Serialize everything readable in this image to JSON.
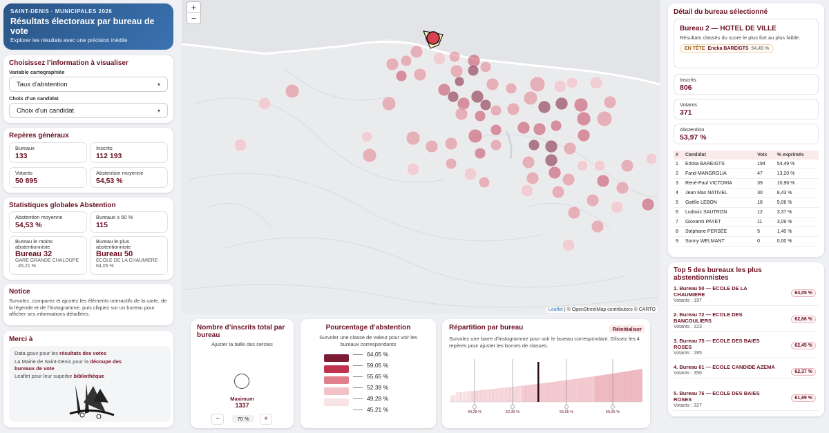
{
  "header": {
    "kicker": "SAINT-DENIS · MUNICIPALES 2026",
    "title": "Résultats électoraux par bureau de vote",
    "subtitle": "Explorer les résultats avec une précision inédite"
  },
  "choose": {
    "title": "Choisissez l’information à visualiser",
    "var_label": "Variable cartographiée",
    "var_value": "Taux d'abstention",
    "cand_label": "Choix d’un candidat",
    "cand_value": "Choix d'un candidat"
  },
  "reperes": {
    "title": "Repères généraux",
    "items": [
      {
        "k": "Bureaux",
        "v": "133"
      },
      {
        "k": "Inscrits",
        "v": "112 193"
      },
      {
        "k": "Votants",
        "v": "50 895"
      },
      {
        "k": "Abstention moyenne",
        "v": "54,53 %"
      }
    ]
  },
  "stats": {
    "title": "Statistiques globales Abstention",
    "abst_k": "Abstention moyenne",
    "abst_v": "54,53 %",
    "b50_k": "Bureaux ≥ 50 %",
    "b50_v": "115",
    "least_k": "Bureau le moins abstentionniste",
    "least_v": "Bureau 32",
    "least_s": "GARE GRANDE CHALOUPE · 45,21 %",
    "most_k": "Bureau le plus abstentionniste",
    "most_v": "Bureau 50",
    "most_s": "ECOLE DE LA CHAUMIERE · 64,05 %"
  },
  "notice": {
    "title": "Notice",
    "text": "Survolez, comparez et ajustez les éléments interactifs de la carte, de la légende et de l'histogramme, puis cliquez sur un bureau pour afficher ses informations détaillées."
  },
  "merci": {
    "title": "Merci à",
    "l1a": "Data.gouv pour les ",
    "l1b": "résultats des votes",
    "l2a": "La Mairie de Saint-Denis pour la ",
    "l2b": "découpe des bureaux de vote",
    "l3a": "Leaflet pour leur superbe ",
    "l3b": "bibliothèque"
  },
  "map": {
    "zoom_in": "+",
    "zoom_out": "−",
    "attr_leaflet": "Leaflet",
    "attr_rest": " | © OpenStreetMap contributors © CARTO"
  },
  "inscrits": {
    "title": "Nombre d’inscrits total par bureau",
    "sub": "Ajuster la taille des cercles",
    "max_label": "Maximum",
    "max_value": "1337",
    "minus": "−",
    "pct": "70 %",
    "plus": "+"
  },
  "pct": {
    "title": "Pourcentage d’abstention",
    "sub": "Survoler une classe de valeur pour voir les bureaux correspondants",
    "classes": [
      "64,05 %",
      "59,05 %",
      "55,65 %",
      "52,39 %",
      "49,28 %",
      "45,21 %"
    ],
    "colors": [
      "#7c1c34",
      "#c0334f",
      "#e17f8c",
      "#f2c2c7",
      "#f8e3e5"
    ]
  },
  "hist": {
    "title": "Répartition par bureau",
    "reset": "Réinitialiser",
    "sub": "Survolez une barre d’histogramme pour voir le bureau correspondant. Glissez les 4 repères pour ajuster les bornes de classes.",
    "marks": [
      "49,28 %",
      "52,39 %",
      "55,65 %",
      "59,05 %"
    ]
  },
  "detail": {
    "title": "Détail du bureau sélectionné",
    "bureau": "Bureau 2 — HOTEL DE VILLE",
    "sub": "Résultats classés du score le plus fort au plus faible.",
    "lead_k": "EN TÊTE",
    "lead_name": "Ericka BAREIGTS",
    "lead_pct": "54,49 %",
    "inscrits_k": "Inscrits",
    "inscrits_v": "806",
    "votants_k": "Votants",
    "votants_v": "371",
    "abst_k": "Abstention",
    "abst_v": "53,97 %",
    "cols": [
      "#",
      "Candidat",
      "Voix",
      "% exprimés"
    ],
    "rows": [
      [
        "1",
        "Ericka BAREIGTS",
        "194",
        "54,49 %"
      ],
      [
        "2",
        "Farid MANGROLIA",
        "47",
        "13,20 %"
      ],
      [
        "3",
        "René-Paul VICTORIA",
        "39",
        "10,96 %"
      ],
      [
        "4",
        "Jean Max NATIVEL",
        "30",
        "8,43 %"
      ],
      [
        "5",
        "Gaëlle LEBON",
        "18",
        "5,06 %"
      ],
      [
        "6",
        "Ludovic SAUTRON",
        "12",
        "3,37 %"
      ],
      [
        "7",
        "Giovanni PAYET",
        "11",
        "3,09 %"
      ],
      [
        "8",
        "Stéphane PERSÉE",
        "5",
        "1,40 %"
      ],
      [
        "9",
        "Sonny WELMANT",
        "0",
        "0,00 %"
      ]
    ]
  },
  "top5": {
    "title": "Top 5 des bureaux les plus abstentionnistes",
    "items": [
      {
        "n": "1. Bureau 50 — ECOLE DE LA CHAUMIERE",
        "vt": "Votants : 197",
        "p": "64,05 %"
      },
      {
        "n": "2. Bureau 72 — ECOLE DES BANCOULIERS",
        "vt": "Votants : 323",
        "p": "62,66 %"
      },
      {
        "n": "3. Bureau 75 — ECOLE DES BAIES ROSES",
        "vt": "Votants : 285",
        "p": "62,45 %"
      },
      {
        "n": "4. Bureau 61 — ECOLE CANDIDE AZEMA",
        "vt": "Votants : 356",
        "p": "62,37 %"
      },
      {
        "n": "5. Bureau 76 — ECOLE DES BAIES ROSES",
        "vt": "Votants : 327",
        "p": "61,89 %"
      }
    ]
  }
}
